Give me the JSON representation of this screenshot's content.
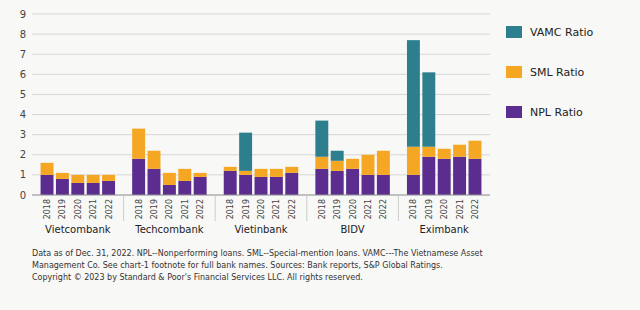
{
  "chart_data": {
    "type": "bar",
    "stacked": true,
    "grid": true,
    "legend": "right",
    "groups": [
      "Vietcombank",
      "Techcombank",
      "Vietinbank",
      "BIDV",
      "Eximbank"
    ],
    "categories": [
      "2018",
      "2019",
      "2020",
      "2021",
      "2022",
      "2018",
      "2019",
      "2020",
      "2021",
      "2022",
      "2018",
      "2019",
      "2020",
      "2021",
      "2022",
      "2018",
      "2019",
      "2020",
      "2021",
      "2022",
      "2018",
      "2019",
      "2020",
      "2021",
      "2022"
    ],
    "series": [
      {
        "name": "NPL Ratio",
        "color": "#5b2d8e",
        "values": [
          1.0,
          0.8,
          0.6,
          0.6,
          0.7,
          1.8,
          1.3,
          0.5,
          0.7,
          0.9,
          1.2,
          1.0,
          0.9,
          0.9,
          1.1,
          1.3,
          1.2,
          1.3,
          1.0,
          1.0,
          1.0,
          1.9,
          1.8,
          1.9,
          1.8
        ]
      },
      {
        "name": "SML Ratio",
        "color": "#f5a623",
        "values": [
          0.6,
          0.3,
          0.4,
          0.4,
          0.3,
          1.5,
          0.9,
          0.6,
          0.6,
          0.2,
          0.2,
          0.2,
          0.4,
          0.4,
          0.3,
          0.6,
          0.5,
          0.5,
          1.0,
          1.2,
          1.4,
          0.5,
          0.5,
          0.6,
          0.9
        ]
      },
      {
        "name": "VAMC Ratio",
        "color": "#2e7f8e",
        "values": [
          0.0,
          0.0,
          0.0,
          0.0,
          0.0,
          0.0,
          0.0,
          0.0,
          0.0,
          0.0,
          0.0,
          1.9,
          0.0,
          0.0,
          0.0,
          1.8,
          0.5,
          0.0,
          0.0,
          0.0,
          5.3,
          3.7,
          0.0,
          0.0,
          0.0
        ]
      }
    ],
    "ylim": [
      0,
      9
    ],
    "yticks": [
      0,
      1,
      2,
      3,
      4,
      5,
      6,
      7,
      8,
      9
    ],
    "annotations": [
      "Data as of Dec. 31, 2022. NPL--Nonperforming loans. SML--Special-mention loans. VAMC---The Vietnamese Asset\nManagement Co. See chart-1 footnote for full bank names. Sources: Bank reports, S&P Global Ratings.\nCopyright © 2023 by Standard & Poor's Financial Services LLC. All rights reserved."
    ]
  }
}
